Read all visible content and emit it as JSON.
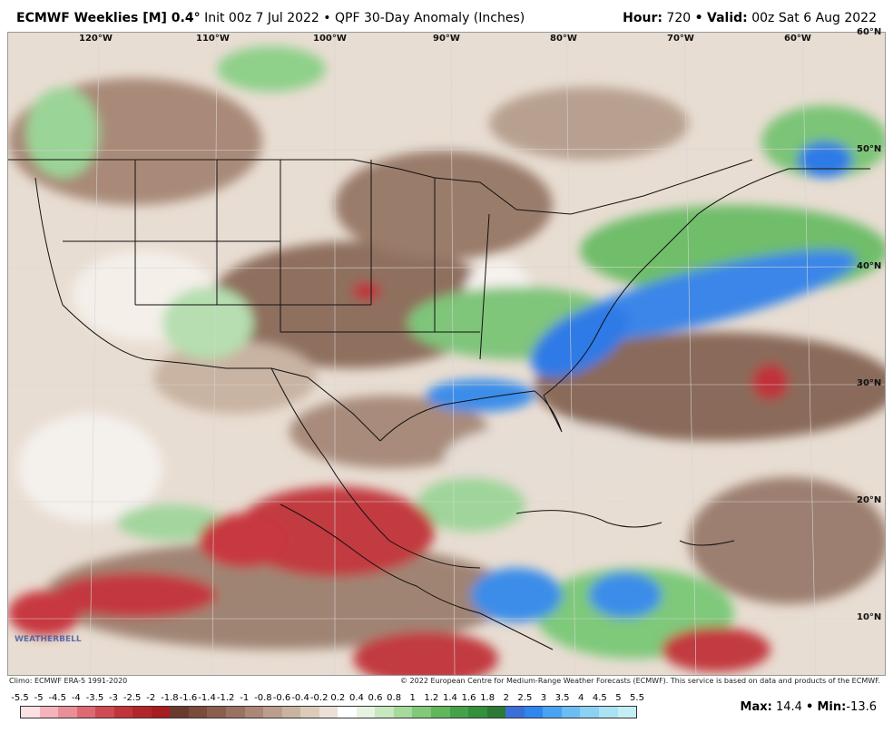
{
  "header": {
    "model": "ECMWF Weeklies [M] 0.4",
    "degree": "°",
    "init": "Init 00z 7 Jul 2022",
    "bullet": "•",
    "field": "QPF 30-Day Anomaly (Inches)",
    "hour_label": "Hour:",
    "hour_value": "720",
    "valid_label": "Valid:",
    "valid_value": "00z Sat 6 Aug 2022"
  },
  "axes": {
    "longitudes": [
      "120°W",
      "110°W",
      "100°W",
      "90°W",
      "80°W",
      "70°W",
      "60°W"
    ],
    "latitudes": [
      "60°N",
      "50°N",
      "40°N",
      "30°N",
      "20°N",
      "10°N"
    ]
  },
  "credits": {
    "left": "Climo: ECMWF ERA-5 1991-2020",
    "right": "© 2022 European Centre for Medium-Range Weather Forecasts (ECMWF). This service is based on data and products of the ECMWF."
  },
  "logo_text": "WEATHERBELL",
  "legend": {
    "ticks": [
      "-5.5",
      "-5",
      "-4.5",
      "-4",
      "-3.5",
      "-3",
      "-2.5",
      "-2",
      "-1.8",
      "-1.6",
      "-1.4",
      "-1.2",
      "-1",
      "-0.8",
      "-0.6",
      "-0.4",
      "-0.2",
      "0.2",
      "0.4",
      "0.6",
      "0.8",
      "1",
      "1.2",
      "1.4",
      "1.6",
      "1.8",
      "2",
      "2.5",
      "3",
      "3.5",
      "4",
      "4.5",
      "5",
      "5.5"
    ],
    "colors": [
      "#fde0e4",
      "#f5b3bb",
      "#ea8f98",
      "#dd6a72",
      "#cf4a52",
      "#c1343b",
      "#b2262b",
      "#a51c21",
      "#6b3a2c",
      "#7a4c3c",
      "#8a5f4e",
      "#9a7262",
      "#ab8777",
      "#bc9d8c",
      "#cbb3a2",
      "#dccbbb",
      "#ece1d6",
      "#ffffff",
      "#e6f3e0",
      "#c8e8c0",
      "#a6d99c",
      "#82c97a",
      "#5fb85c",
      "#45a24a",
      "#33903d",
      "#2c7a36",
      "#3a6fd8",
      "#2f86ee",
      "#4aa3f2",
      "#6bbdf3",
      "#8bd1f2",
      "#a8e2f3",
      "#c3eef6"
    ]
  },
  "stats": {
    "max_label": "Max:",
    "max_value": "14.4",
    "min_label": "Min:",
    "min_value": "-13.6"
  }
}
